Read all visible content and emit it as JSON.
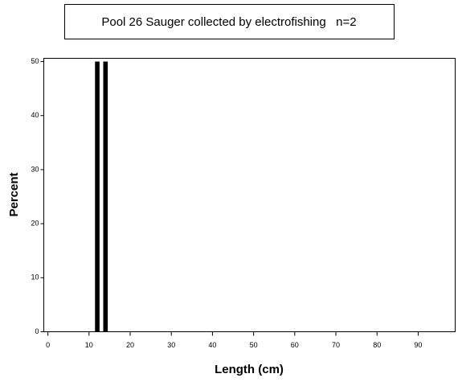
{
  "chart_data": {
    "type": "bar",
    "title": "Pool 26 Sauger collected by electrofishing   n=2",
    "x_label": "Length (cm)",
    "y_label": "Percent",
    "x": [
      12,
      14
    ],
    "values": [
      50,
      50
    ],
    "color": "#000000",
    "xlim": [
      -1,
      99
    ],
    "xticks": [
      0,
      10,
      20,
      30,
      40,
      50,
      60,
      70,
      80,
      90
    ],
    "ylim": [
      0,
      50.6
    ],
    "yticks": [
      0,
      10,
      20,
      30,
      40,
      50
    ]
  }
}
